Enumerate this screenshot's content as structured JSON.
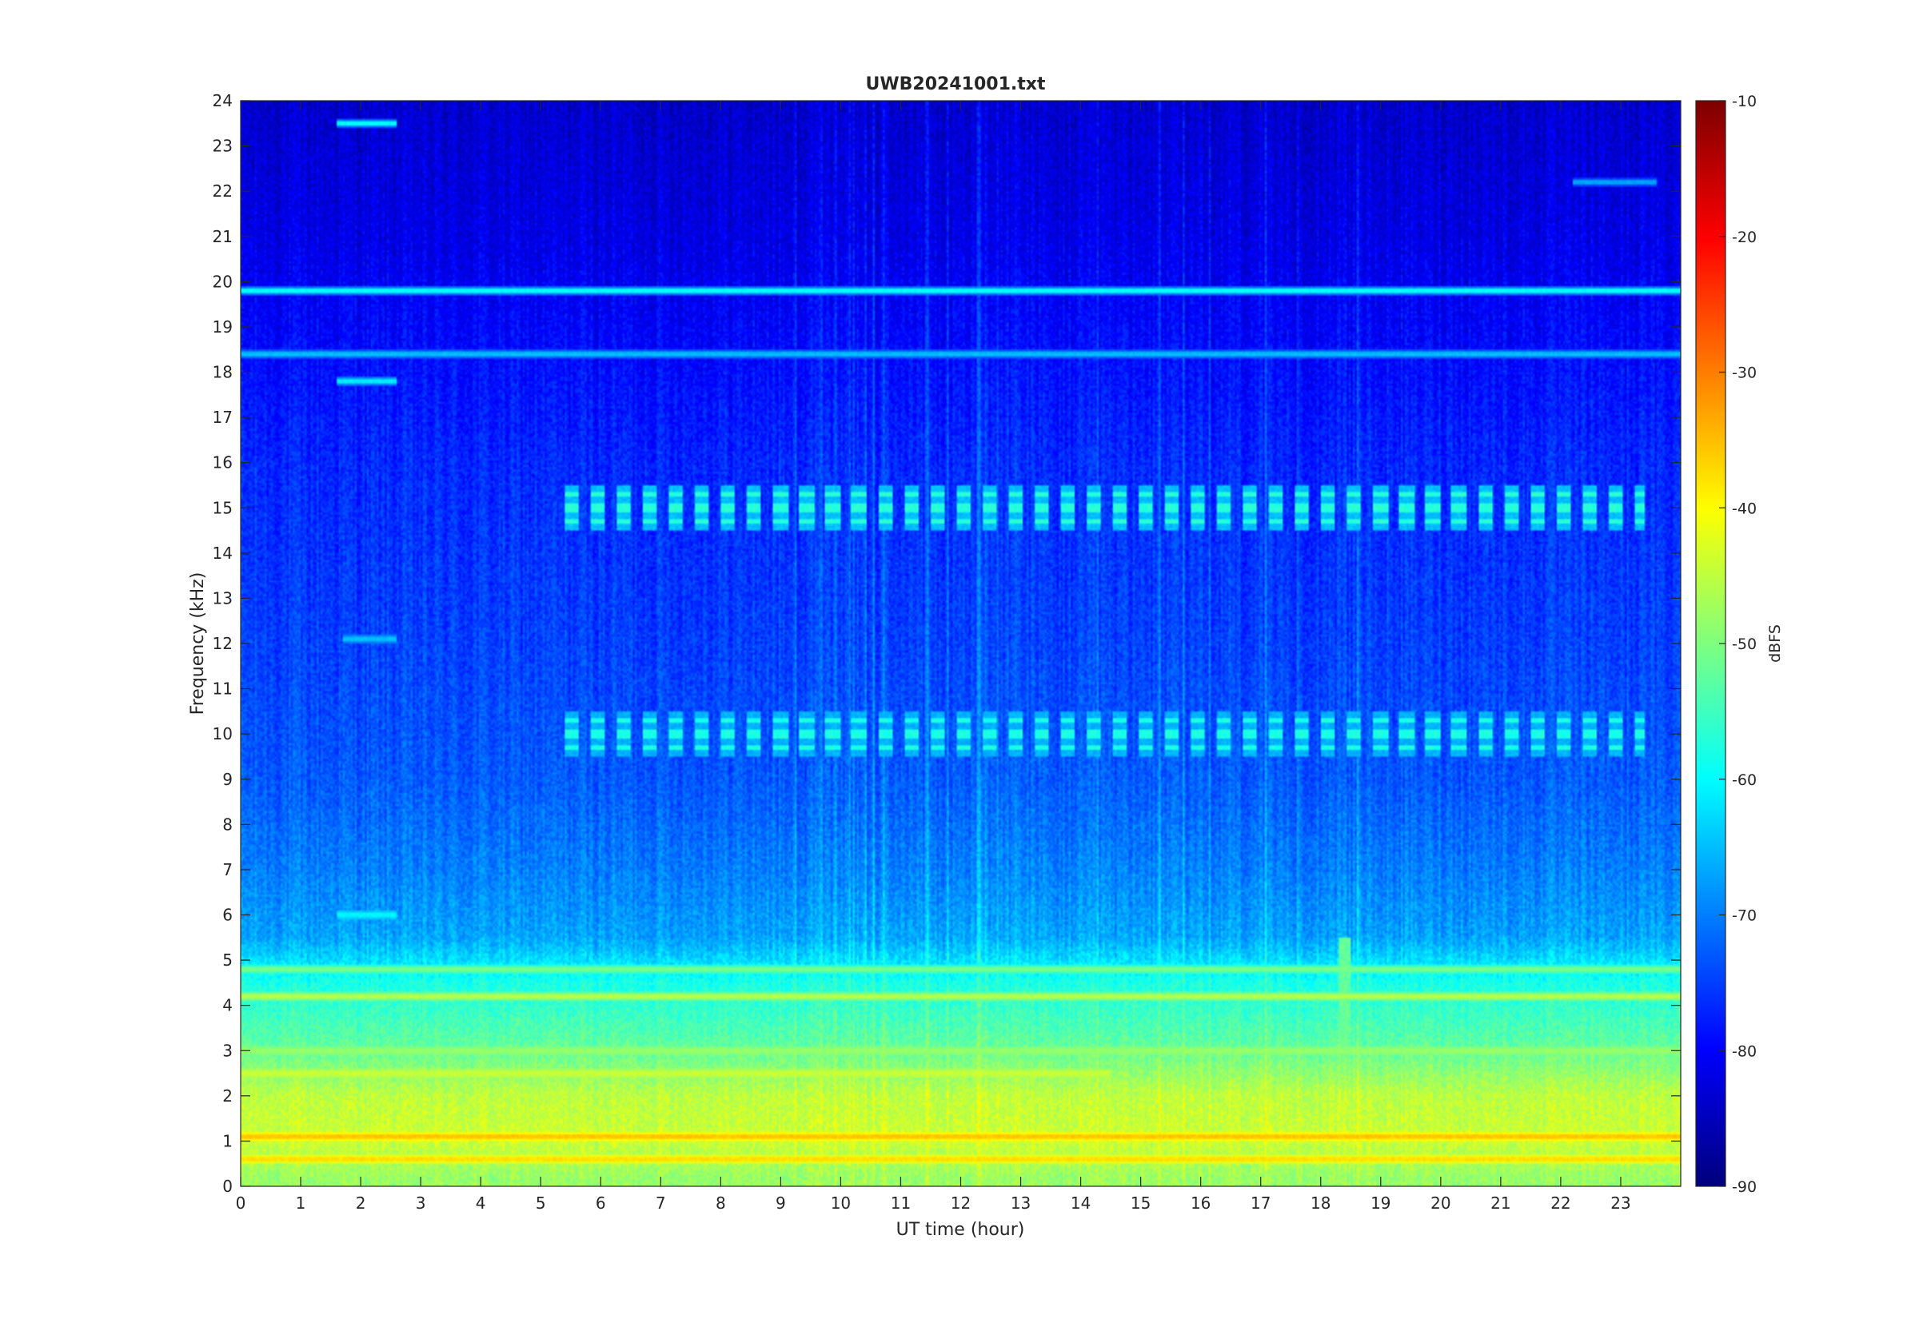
{
  "chart_data": {
    "type": "heatmap",
    "title": "UWB20241001.txt",
    "xlabel": "UT time (hour)",
    "ylabel": "Frequency (kHz)",
    "xlim": [
      0,
      24
    ],
    "ylim": [
      0,
      24
    ],
    "x_ticks": [
      "0",
      "1",
      "2",
      "3",
      "4",
      "5",
      "6",
      "7",
      "8",
      "9",
      "10",
      "11",
      "12",
      "13",
      "14",
      "15",
      "16",
      "17",
      "18",
      "19",
      "20",
      "21",
      "22",
      "23"
    ],
    "y_ticks": [
      "0",
      "1",
      "2",
      "3",
      "4",
      "5",
      "6",
      "7",
      "8",
      "9",
      "10",
      "11",
      "12",
      "13",
      "14",
      "15",
      "16",
      "17",
      "18",
      "19",
      "20",
      "21",
      "22",
      "23",
      "24"
    ],
    "colorbar": {
      "label": "dBFS",
      "range": [
        -90,
        -10
      ],
      "ticks": [
        "-90",
        "-80",
        "-70",
        "-60",
        "-50",
        "-40",
        "-30",
        "-20",
        "-10"
      ],
      "colormap": "jet"
    },
    "background_profile": [
      {
        "freq_khz": 0.2,
        "dbfs": -48
      },
      {
        "freq_khz": 1.0,
        "dbfs": -44
      },
      {
        "freq_khz": 2.0,
        "dbfs": -45
      },
      {
        "freq_khz": 3.0,
        "dbfs": -52
      },
      {
        "freq_khz": 4.5,
        "dbfs": -58
      },
      {
        "freq_khz": 5.5,
        "dbfs": -67
      },
      {
        "freq_khz": 7.0,
        "dbfs": -70
      },
      {
        "freq_khz": 9.0,
        "dbfs": -73
      },
      {
        "freq_khz": 12.0,
        "dbfs": -75
      },
      {
        "freq_khz": 16.0,
        "dbfs": -77
      },
      {
        "freq_khz": 19.0,
        "dbfs": -80
      },
      {
        "freq_khz": 21.0,
        "dbfs": -82
      },
      {
        "freq_khz": 24.0,
        "dbfs": -84
      }
    ],
    "features": [
      {
        "name": "tone-19.8kHz",
        "freq_khz": 19.8,
        "t_start": 0,
        "t_end": 24,
        "dbfs": -58
      },
      {
        "name": "tone-18.4kHz",
        "freq_khz": 18.4,
        "t_start": 0,
        "t_end": 24,
        "dbfs": -64
      },
      {
        "name": "tone-1.1kHz",
        "freq_khz": 1.1,
        "t_start": 0,
        "t_end": 24,
        "dbfs": -35
      },
      {
        "name": "tone-0.6kHz",
        "freq_khz": 0.6,
        "t_start": 0,
        "t_end": 24,
        "dbfs": -37
      },
      {
        "name": "tone-4.2kHz",
        "freq_khz": 4.2,
        "t_start": 0,
        "t_end": 24,
        "dbfs": -45
      },
      {
        "name": "tone-4.8kHz",
        "freq_khz": 4.8,
        "t_start": 0,
        "t_end": 24,
        "dbfs": -50
      },
      {
        "name": "tone-3.0kHz",
        "freq_khz": 3.0,
        "t_start": 0,
        "t_end": 24,
        "dbfs": -48
      },
      {
        "name": "tone-2.5kHz",
        "freq_khz": 2.5,
        "t_start": 0,
        "t_end": 14.5,
        "dbfs": -44
      },
      {
        "name": "pulses-15kHz",
        "freq_khz": 15.0,
        "t_start": 5.4,
        "t_end": 23.4,
        "dbfs": -57
      },
      {
        "name": "pulses-10kHz",
        "freq_khz": 10.0,
        "t_start": 5.4,
        "t_end": 23.4,
        "dbfs": -58
      },
      {
        "name": "tone-17.8kHz",
        "freq_khz": 17.8,
        "t_start": 1.6,
        "t_end": 2.6,
        "dbfs": -60
      },
      {
        "name": "tone-23.5kHz",
        "freq_khz": 23.5,
        "t_start": 1.6,
        "t_end": 2.6,
        "dbfs": -58
      },
      {
        "name": "tone-22.2kHz",
        "freq_khz": 22.2,
        "t_start": 22.2,
        "t_end": 23.6,
        "dbfs": -66
      },
      {
        "name": "tone-12.1kHz",
        "freq_khz": 12.1,
        "t_start": 1.7,
        "t_end": 2.6,
        "dbfs": -64
      },
      {
        "name": "tone-6.0kHz",
        "freq_khz": 6.0,
        "t_start": 1.6,
        "t_end": 2.6,
        "dbfs": -60
      },
      {
        "name": "broadband-18.5h",
        "t_start": 18.3,
        "t_end": 18.5,
        "freq_low_khz": 0,
        "freq_high_khz": 5.5,
        "dbfs": -52
      }
    ]
  }
}
